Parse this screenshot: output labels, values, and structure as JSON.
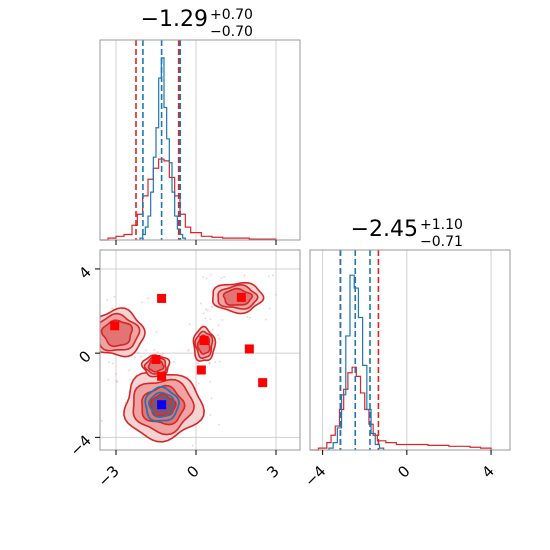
{
  "chart_data": [
    {
      "panel": "marginal-param-1",
      "type": "histogram",
      "title": {
        "median": "−1.29",
        "plus": "+0.70",
        "minus": "−0.70"
      },
      "xlim": [
        -3.6,
        3.9
      ],
      "grid": true,
      "xticks": [
        -3,
        0,
        3
      ],
      "colors": {
        "primary": "#1f77b4",
        "secondary": "#d62728"
      },
      "primary_quantile_lines": [
        -1.99,
        -1.29,
        -0.59
      ],
      "secondary_quantile_lines": [
        -2.25,
        -0.65
      ],
      "primary_hist": {
        "bins": [
          -2.1,
          -2.0,
          -1.9,
          -1.8,
          -1.7,
          -1.6,
          -1.5,
          -1.4,
          -1.3,
          -1.2,
          -1.1,
          -1.0,
          -0.9,
          -0.8,
          -0.7,
          -0.6,
          -0.5,
          -0.4
        ],
        "values": [
          0.01,
          0.03,
          0.07,
          0.13,
          0.26,
          0.45,
          0.61,
          0.88,
          0.99,
          0.72,
          0.55,
          0.42,
          0.26,
          0.13,
          0.06,
          0.03,
          0.01,
          0.0
        ]
      },
      "secondary_hist": {
        "bins": [
          -3.6,
          -3.3,
          -3.0,
          -2.7,
          -2.4,
          -2.2,
          -2.0,
          -1.8,
          -1.6,
          -1.4,
          -1.2,
          -1.0,
          -0.8,
          -0.6,
          -0.4,
          -0.2,
          0.2,
          0.6,
          1.0,
          1.5,
          2.0,
          2.5,
          3.0
        ],
        "values": [
          0.0,
          0.01,
          0.02,
          0.03,
          0.08,
          0.14,
          0.24,
          0.33,
          0.39,
          0.44,
          0.43,
          0.34,
          0.24,
          0.14,
          0.07,
          0.04,
          0.02,
          0.015,
          0.01,
          0.01,
          0.005,
          0.005,
          0.0
        ]
      }
    },
    {
      "panel": "joint-2d",
      "type": "contour",
      "xlim": [
        -3.6,
        3.9
      ],
      "ylim": [
        -4.6,
        4.9
      ],
      "grid": true,
      "xticks": [
        -3,
        0,
        3
      ],
      "yticks": [
        -4,
        0,
        4
      ],
      "primary_center": {
        "x": -1.29,
        "y": -2.45
      },
      "secondary_blobs": [
        {
          "x": -1.25,
          "y": -2.5,
          "rx": 1.45,
          "ry": 1.6
        },
        {
          "x": 1.55,
          "y": 2.65,
          "rx": 0.95,
          "ry": 0.7
        },
        {
          "x": -2.95,
          "y": 0.95,
          "rx": 1.0,
          "ry": 1.1
        },
        {
          "x": 0.3,
          "y": 0.4,
          "rx": 0.4,
          "ry": 0.8
        },
        {
          "x": -1.5,
          "y": -0.6,
          "rx": 0.5,
          "ry": 0.5
        }
      ],
      "secondary_points": [
        {
          "x": -1.29,
          "y": 2.6
        },
        {
          "x": 1.7,
          "y": 2.65
        },
        {
          "x": -3.05,
          "y": 1.3
        },
        {
          "x": 0.3,
          "y": 0.6
        },
        {
          "x": 2.0,
          "y": 0.2
        },
        {
          "x": -1.5,
          "y": -0.3
        },
        {
          "x": -1.29,
          "y": -1.1
        },
        {
          "x": 0.2,
          "y": -0.8
        },
        {
          "x": 2.5,
          "y": -1.4
        }
      ],
      "primary_point": {
        "x": -1.29,
        "y": -2.45
      }
    },
    {
      "panel": "marginal-param-2",
      "type": "histogram",
      "title": {
        "median": "−2.45",
        "plus": "+1.10",
        "minus": "−0.71"
      },
      "xlim": [
        -4.6,
        4.9
      ],
      "grid": true,
      "xticks": [
        -4,
        0,
        4
      ],
      "primary_quantile_lines": [
        -3.15,
        -2.45,
        -1.75
      ],
      "secondary_quantile_lines": [
        -3.16,
        -1.35
      ],
      "primary_hist": {
        "bins": [
          -3.7,
          -3.5,
          -3.3,
          -3.1,
          -2.9,
          -2.7,
          -2.5,
          -2.3,
          -2.1,
          -1.9,
          -1.7,
          -1.5,
          -1.3,
          -1.1
        ],
        "values": [
          0.01,
          0.04,
          0.12,
          0.3,
          0.62,
          0.95,
          0.88,
          0.72,
          0.46,
          0.22,
          0.09,
          0.03,
          0.01,
          0.0
        ]
      },
      "secondary_hist": {
        "bins": [
          -4.6,
          -4.2,
          -3.8,
          -3.6,
          -3.4,
          -3.2,
          -3.0,
          -2.8,
          -2.6,
          -2.4,
          -2.2,
          -2.0,
          -1.8,
          -1.6,
          -1.4,
          -1.0,
          -0.5,
          0.0,
          0.5,
          1.0,
          1.5,
          2.0,
          2.5,
          3.0,
          3.5,
          4.0
        ],
        "values": [
          0.0,
          0.01,
          0.04,
          0.08,
          0.13,
          0.22,
          0.33,
          0.42,
          0.45,
          0.4,
          0.31,
          0.22,
          0.14,
          0.08,
          0.05,
          0.04,
          0.03,
          0.03,
          0.03,
          0.025,
          0.025,
          0.02,
          0.02,
          0.015,
          0.01,
          0.0
        ]
      }
    }
  ]
}
